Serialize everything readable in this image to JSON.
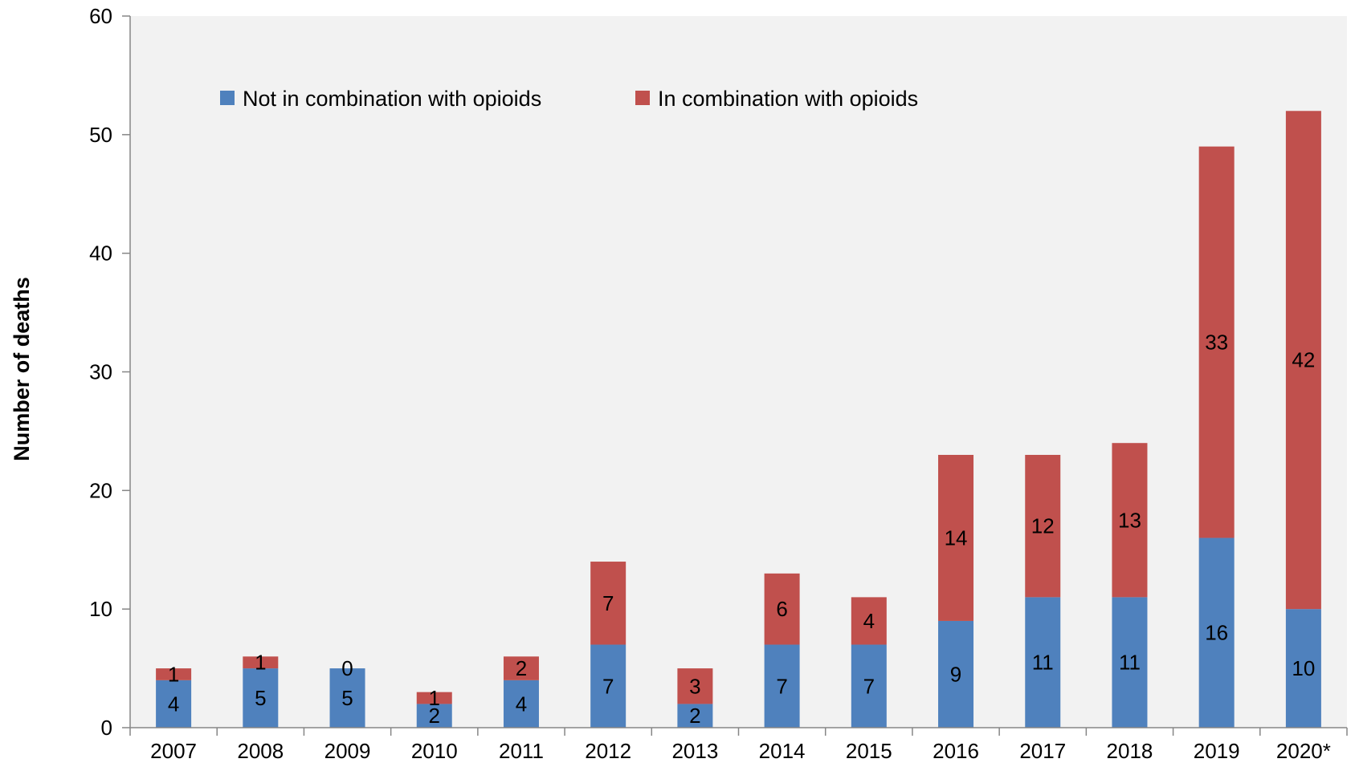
{
  "chart_data": {
    "type": "bar",
    "stacked": true,
    "categories": [
      "2007",
      "2008",
      "2009",
      "2010",
      "2011",
      "2012",
      "2013",
      "2014",
      "2015",
      "2016",
      "2017",
      "2018",
      "2019",
      "2020*"
    ],
    "series": [
      {
        "name": "Not in combination with opioids",
        "color": "#4f81bd",
        "values": [
          4,
          5,
          5,
          2,
          4,
          7,
          2,
          7,
          7,
          9,
          11,
          11,
          16,
          10
        ]
      },
      {
        "name": "In combination with opioids",
        "color": "#c0504d",
        "values": [
          1,
          1,
          0,
          1,
          2,
          7,
          3,
          6,
          4,
          14,
          12,
          13,
          33,
          42
        ]
      }
    ],
    "title": "",
    "xlabel": "",
    "ylabel": "Number of deaths",
    "ylim": [
      0,
      60
    ],
    "yticks": [
      0,
      10,
      20,
      30,
      40,
      50,
      60
    ],
    "grid": false,
    "legend": "top-left",
    "plot_background": "#f2f2f2"
  }
}
